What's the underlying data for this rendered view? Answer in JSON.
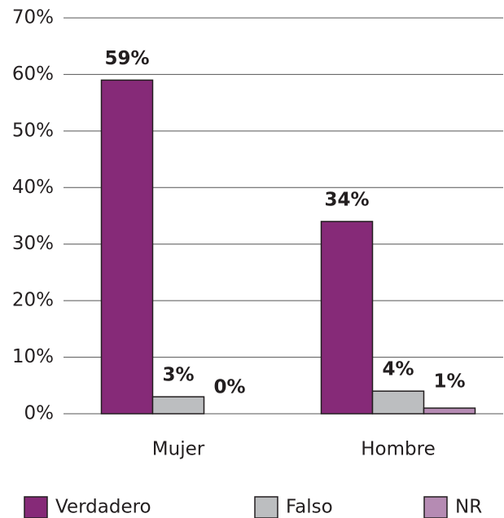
{
  "chart_data": {
    "type": "bar",
    "categories": [
      "Mujer",
      "Hombre"
    ],
    "series": [
      {
        "name": "Verdadero",
        "color": "#862a78",
        "values": [
          59,
          34
        ],
        "value_labels": [
          "59%",
          "34%"
        ]
      },
      {
        "name": "Falso",
        "color": "#bcbec0",
        "values": [
          3,
          4
        ],
        "value_labels": [
          "3%",
          "4%"
        ]
      },
      {
        "name": "NR",
        "color": "#b58bb3",
        "values": [
          0,
          1
        ],
        "value_labels": [
          "0%",
          "1%"
        ]
      }
    ],
    "ylim": [
      0,
      70
    ],
    "yticks": [
      {
        "value": 0,
        "label": "0%"
      },
      {
        "value": 10,
        "label": "10%"
      },
      {
        "value": 20,
        "label": "20%"
      },
      {
        "value": 30,
        "label": "30%"
      },
      {
        "value": 40,
        "label": "40%"
      },
      {
        "value": 50,
        "label": "50%"
      },
      {
        "value": 60,
        "label": "60%"
      },
      {
        "value": 70,
        "label": "70%"
      }
    ],
    "grid": true
  }
}
